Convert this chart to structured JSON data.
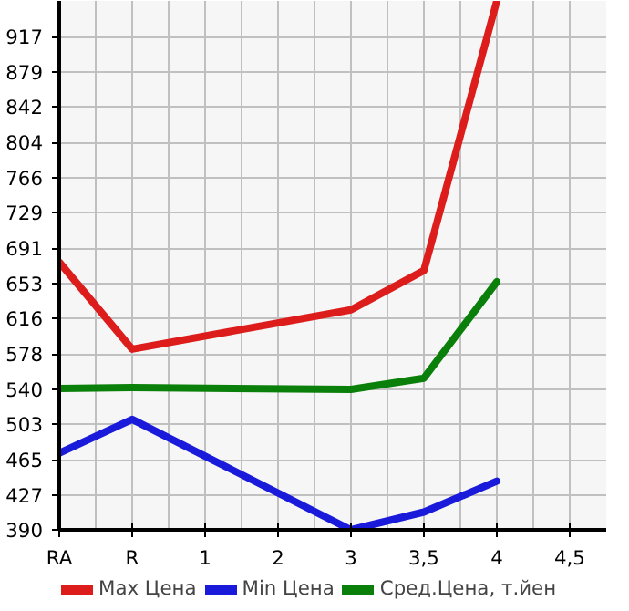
{
  "chart_data": {
    "type": "line",
    "categories": [
      "RA",
      "R",
      "1",
      "2",
      "3",
      "3,5",
      "4",
      "4,5"
    ],
    "series": [
      {
        "name": "Max Цена",
        "color": "#dd1c1c",
        "values": [
          676,
          583,
          null,
          null,
          625,
          667,
          955,
          null
        ]
      },
      {
        "name": "Min Цена",
        "color": "#1a1adb",
        "values": [
          472,
          508,
          null,
          null,
          390,
          409,
          442,
          null
        ]
      },
      {
        "name": "Сред.Цена, т.йен",
        "color": "#0a7f0a",
        "values": [
          541,
          542,
          null,
          null,
          540,
          552,
          655,
          null
        ]
      }
    ],
    "ylim": [
      390,
      955
    ],
    "yticks": [
      390,
      427,
      465,
      503,
      540,
      578,
      616,
      653,
      691,
      729,
      766,
      804,
      842,
      879,
      917
    ],
    "grid": true,
    "legend": "bottom",
    "marker": "none",
    "line_style": "solid"
  }
}
